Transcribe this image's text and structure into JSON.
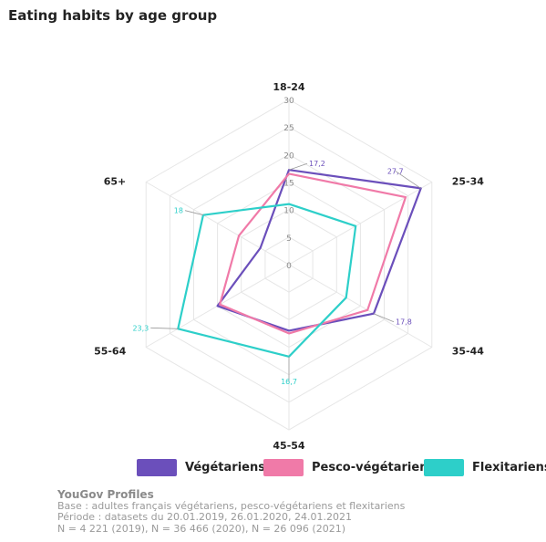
{
  "title": "Eating habits by age group",
  "legend": [
    {
      "label": "Végétariens",
      "color": "#6b4fbb"
    },
    {
      "label": "Pesco-végétariens",
      "color": "#f07aa8"
    },
    {
      "label": "Flexitariens",
      "color": "#2dcfc9"
    }
  ],
  "footer": {
    "brand": "YouGov Profiles",
    "lines": [
      "Base : adultes français végétariens, pesco-végétariens et flexitariens",
      "Période : datasets du 20.01.2019, 26.01.2020, 24.01.2021",
      "N = 4 221 (2019), N = 36 466 (2020), N = 26 096 (2021)"
    ]
  },
  "chart_data": {
    "type": "radar",
    "categories": [
      "18-24",
      "25-34",
      "35-44",
      "45-54",
      "55-64",
      "65+"
    ],
    "rmax": 30,
    "ticks": [
      0,
      5,
      10,
      15,
      20,
      25,
      30
    ],
    "grid": true,
    "legend_position": "bottom",
    "series": [
      {
        "name": "Végétariens",
        "color": "#6b4fbb",
        "values": [
          17.2,
          27.7,
          17.8,
          12,
          15,
          6
        ]
      },
      {
        "name": "Pesco-végétariens",
        "color": "#f07aa8",
        "values": [
          16.5,
          24.5,
          16.5,
          12.5,
          14.5,
          10.5
        ]
      },
      {
        "name": "Flexitariens",
        "color": "#2dcfc9",
        "values": [
          11,
          14,
          12,
          16.7,
          23.3,
          18
        ]
      }
    ],
    "data_labels": [
      {
        "series": "Végétariens",
        "category": "18-24",
        "text": "17,2"
      },
      {
        "series": "Végétariens",
        "category": "25-34",
        "text": "27,7"
      },
      {
        "series": "Végétariens",
        "category": "35-44",
        "text": "17,8"
      },
      {
        "series": "Flexitariens",
        "category": "45-54",
        "text": "16,7"
      },
      {
        "series": "Flexitariens",
        "category": "55-64",
        "text": "23,3"
      },
      {
        "series": "Flexitariens",
        "category": "65+",
        "text": "18"
      }
    ]
  }
}
